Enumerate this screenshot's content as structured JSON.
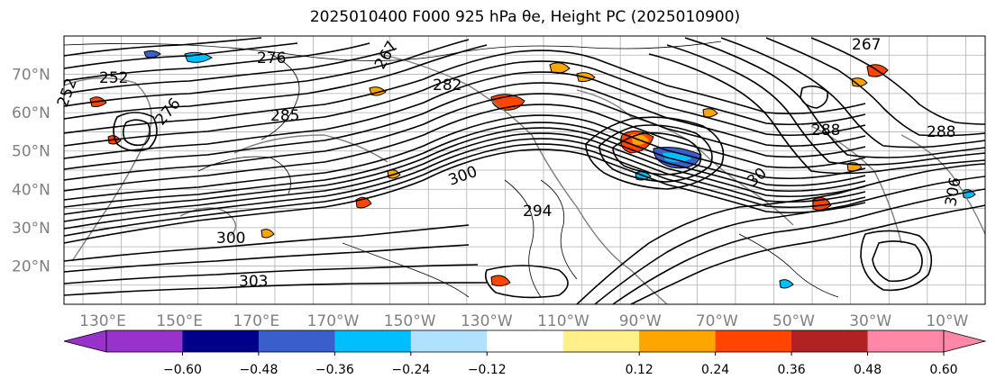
{
  "title": "2025010400 F000 925 hPa θe, Height PC (2025010900)",
  "map": {
    "lat_labels": [
      "70°N",
      "60°N",
      "50°N",
      "40°N",
      "30°N",
      "20°N"
    ],
    "lat_values": [
      70,
      60,
      50,
      40,
      30,
      20
    ],
    "lat_range": [
      10,
      80
    ],
    "lon_labels": [
      "130°E",
      "150°E",
      "170°E",
      "170°W",
      "150°W",
      "130°W",
      "110°W",
      "90°W",
      "70°W",
      "50°W",
      "30°W",
      "10°W"
    ],
    "contour_labels": [
      "267",
      "267",
      "252",
      "252",
      "276",
      "276",
      "285",
      "282",
      "288",
      "288",
      "300",
      "300",
      "303",
      "294",
      "306",
      "30"
    ]
  },
  "colorbar": {
    "ticks": [
      "−0.60",
      "−0.48",
      "−0.36",
      "−0.24",
      "−0.12",
      "0.12",
      "0.24",
      "0.36",
      "0.48",
      "0.60"
    ],
    "colors": [
      "#9932cc",
      "#00008b",
      "#3a5fcd",
      "#00bfff",
      "#b0e2ff",
      "#ffffff",
      "#fff08a",
      "#ffa500",
      "#ff4500",
      "#b22222",
      "#ff87a8"
    ],
    "extend_low_color": "#9932cc",
    "extend_high_color": "#ff87a8"
  },
  "colors": {
    "contour": "#000000",
    "coast": "#7f7f7f",
    "grid": "#b0b0b0",
    "axis_label": "#808080"
  }
}
